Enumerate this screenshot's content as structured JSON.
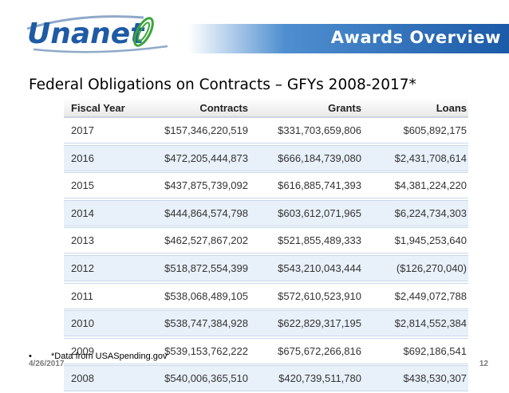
{
  "header": {
    "logo_text": "Unanet",
    "title": "Awards Overview"
  },
  "slide": {
    "subtitle": "Federal Obligations on Contracts – GFYs 2008-2017*",
    "footnote": "*Data from USASpending.gov",
    "date": "4/26/2017",
    "page": "12"
  },
  "table": {
    "headers": [
      "Fiscal Year",
      "Contracts",
      "Grants",
      "Loans"
    ],
    "rows": [
      [
        "2017",
        "$157,346,220,519",
        "$331,703,659,806",
        "$605,892,175"
      ],
      [
        "2016",
        "$472,205,444,873",
        "$666,184,739,080",
        "$2,431,708,614"
      ],
      [
        "2015",
        "$437,875,739,092",
        "$616,885,741,393",
        "$4,381,224,220"
      ],
      [
        "2014",
        "$444,864,574,798",
        "$603,612,071,965",
        "$6,224,734,303"
      ],
      [
        "2013",
        "$462,527,867,202",
        "$521,855,489,333",
        "$1,945,253,640"
      ],
      [
        "2012",
        "$518,872,554,399",
        "$543,210,043,444",
        "($126,270,040)"
      ],
      [
        "2011",
        "$538,068,489,105",
        "$572,610,523,910",
        "$2,449,072,788"
      ],
      [
        "2010",
        "$538,747,384,928",
        "$622,829,317,195",
        "$2,814,552,384"
      ],
      [
        "2009",
        "$539,153,762,222",
        "$675,672,266,816",
        "$692,186,541"
      ],
      [
        "2008",
        "$540,006,365,510",
        "$420,739,511,780",
        "$438,530,307"
      ]
    ]
  }
}
